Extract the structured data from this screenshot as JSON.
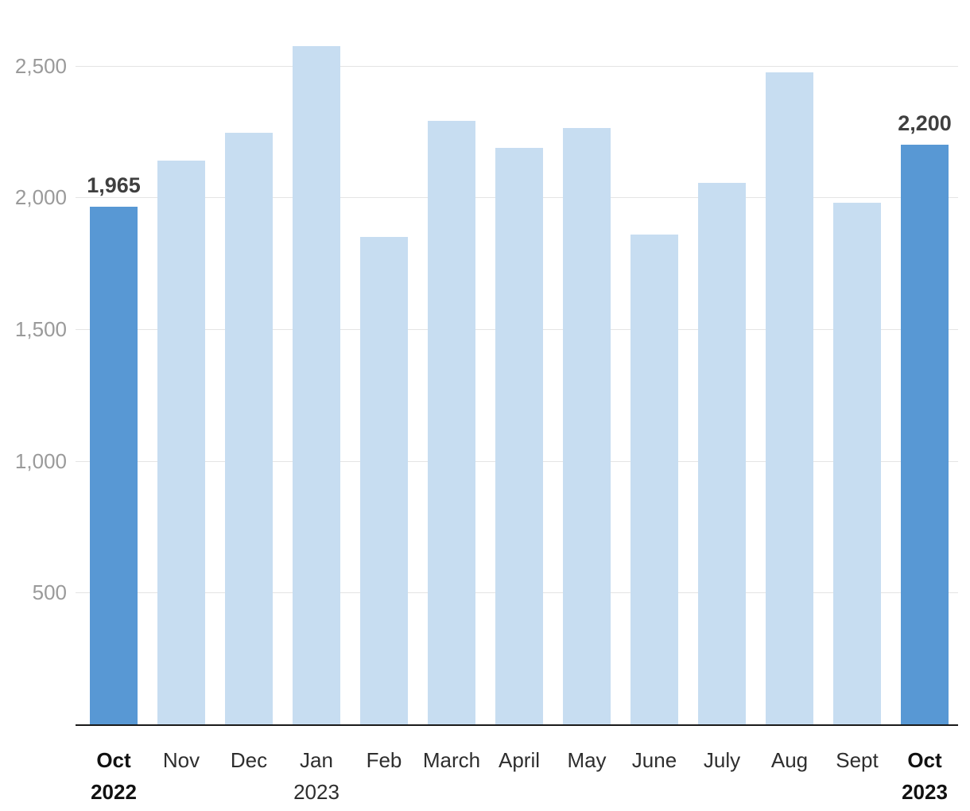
{
  "chart_data": {
    "type": "bar",
    "title": "",
    "xlabel": "",
    "ylabel": "",
    "grid": true,
    "ylim": [
      0,
      2750
    ],
    "categories": [
      {
        "label": "Oct",
        "sublabel": "2022",
        "bold": true
      },
      {
        "label": "Nov",
        "sublabel": "",
        "bold": false
      },
      {
        "label": "Dec",
        "sublabel": "",
        "bold": false
      },
      {
        "label": "Jan",
        "sublabel": "2023",
        "bold": false
      },
      {
        "label": "Feb",
        "sublabel": "",
        "bold": false
      },
      {
        "label": "March",
        "sublabel": "",
        "bold": false
      },
      {
        "label": "April",
        "sublabel": "",
        "bold": false
      },
      {
        "label": "May",
        "sublabel": "",
        "bold": false
      },
      {
        "label": "June",
        "sublabel": "",
        "bold": false
      },
      {
        "label": "July",
        "sublabel": "",
        "bold": false
      },
      {
        "label": "Aug",
        "sublabel": "",
        "bold": false
      },
      {
        "label": "Sept",
        "sublabel": "",
        "bold": false
      },
      {
        "label": "Oct",
        "sublabel": "2023",
        "bold": true
      }
    ],
    "values": [
      1965,
      2140,
      2245,
      2575,
      1850,
      2290,
      2190,
      2265,
      1860,
      2055,
      2475,
      1980,
      2200
    ],
    "highlighted_indices": [
      0,
      12
    ],
    "value_labels": [
      {
        "index": 0,
        "text": "1,965"
      },
      {
        "index": 12,
        "text": "2,200"
      }
    ],
    "yticks": [
      {
        "value": 500,
        "label": "500"
      },
      {
        "value": 1000,
        "label": "1,000"
      },
      {
        "value": 1500,
        "label": "1,500"
      },
      {
        "value": 2000,
        "label": "2,000"
      },
      {
        "value": 2500,
        "label": "2,500"
      }
    ],
    "colors": {
      "bar": "#c7ddf1",
      "bar_highlight": "#5898d4",
      "gridline": "#e4e4e4",
      "axis": "#1a1a1a",
      "ytick_text": "#9a9a9a",
      "xtick_text": "#2e2e2e",
      "xtick_bold_text": "#111111",
      "value_label_text": "#3f3f3f"
    }
  }
}
